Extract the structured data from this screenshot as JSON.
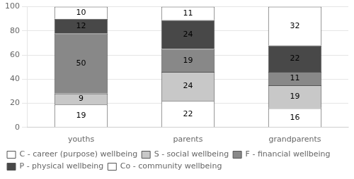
{
  "chart_data": {
    "type": "bar",
    "stacked": true,
    "categories": [
      "youths",
      "parents",
      "grandparents"
    ],
    "series": [
      {
        "name": "C - career (purpose) wellbeing",
        "values": [
          19,
          22,
          16
        ],
        "color": "#FFFFFF"
      },
      {
        "name": "S - social wellbeing",
        "values": [
          9,
          24,
          19
        ],
        "color": "#C8C8C8"
      },
      {
        "name": "F - financial wellbeing",
        "values": [
          50,
          19,
          11
        ],
        "color": "#888888"
      },
      {
        "name": "P - physical wellbeing",
        "values": [
          12,
          24,
          22
        ],
        "color": "#484848"
      },
      {
        "name": "Co - community wellbeing",
        "values": [
          10,
          11,
          32
        ],
        "color": "#FFFFFF"
      }
    ],
    "ylim": [
      0,
      100
    ],
    "yticks": [
      0,
      20,
      40,
      60,
      80,
      100
    ],
    "grid": true,
    "legend": "bottom",
    "data_labels": true
  }
}
